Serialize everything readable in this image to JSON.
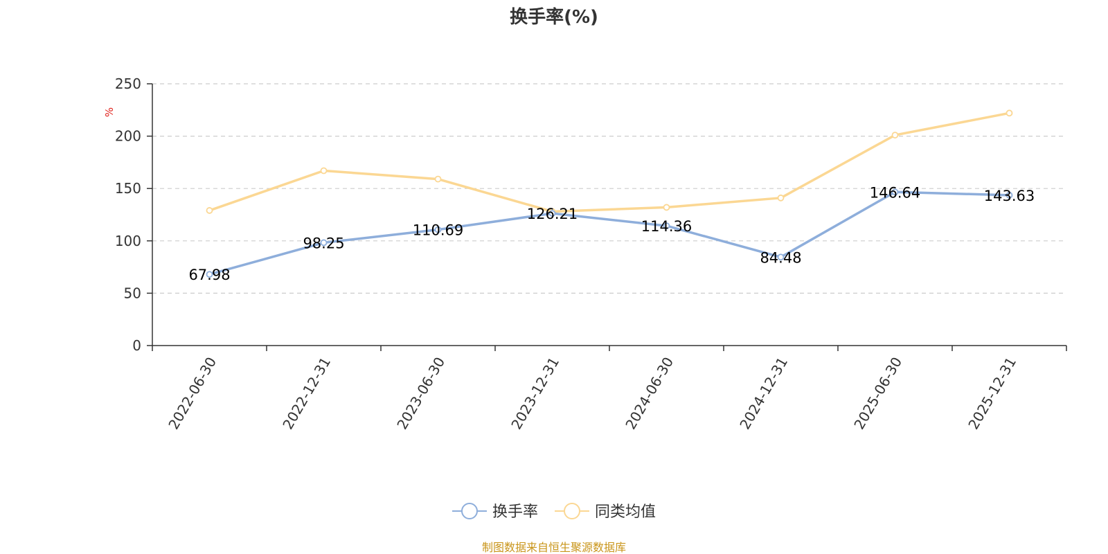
{
  "chart_data": {
    "type": "line",
    "title": "换手率(%)",
    "ylabel": "%",
    "categories": [
      "2022-06-30",
      "2022-12-31",
      "2023-06-30",
      "2023-12-31",
      "2024-06-30",
      "2024-12-31",
      "2025-06-30",
      "2025-12-31"
    ],
    "ylim": [
      0,
      250
    ],
    "yticks": [
      0,
      50,
      100,
      150,
      200,
      250
    ],
    "grid": true,
    "legend_position": "bottom",
    "series": [
      {
        "name": "换手率",
        "color": "#8eaedb",
        "values": [
          67.98,
          98.25,
          110.69,
          126.21,
          114.36,
          84.48,
          146.64,
          143.63
        ],
        "labels": [
          "67.98",
          "98.25",
          "110.69",
          "126.21",
          "114.36",
          "84.48",
          "146.64",
          "143.63"
        ]
      },
      {
        "name": "同类均值",
        "color": "#fbd793",
        "values": [
          129,
          167,
          159,
          128,
          132,
          141,
          201,
          222
        ]
      }
    ]
  },
  "colors": {
    "axis": "#333333",
    "grid": "#cccccc",
    "unit": "#e0211b",
    "source": "#c9951a"
  },
  "source": "制图数据来自恒生聚源数据库"
}
